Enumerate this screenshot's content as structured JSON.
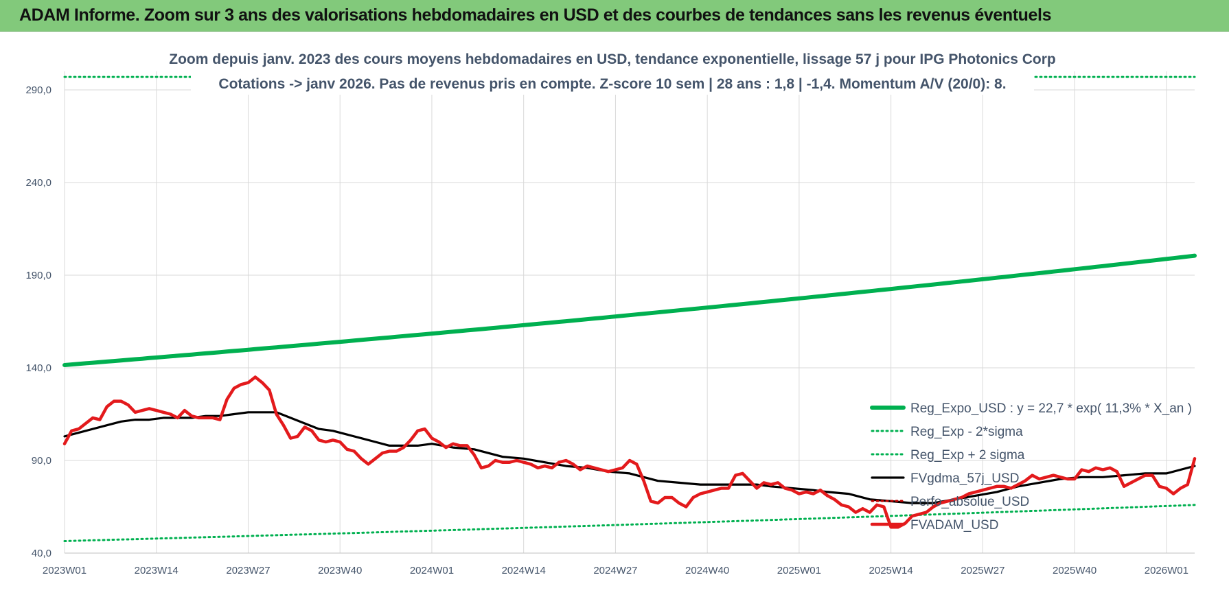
{
  "banner": {
    "title": "ADAM Informe. Zoom sur 3 ans des valorisations hebdomadaires en USD et des courbes de tendances sans les revenus éventuels"
  },
  "chart_data": {
    "type": "line",
    "title": "",
    "subtitle_lines": [
      "Zoom depuis janv. 2023 des cours moyens hebdomadaires en USD, tendance exponentielle, lissage 57 j pour IPG Photonics Corp",
      "Cotations -> janv 2026. Pas de revenus pris en compte. Z-score 10 sem | 28 ans : 1,8 | -1,4. Momentum A/V (20/0): 8."
    ],
    "xlabel": "",
    "ylabel": "",
    "ylim": [
      40,
      300
    ],
    "y_ticks": [
      "40,0",
      "90,0",
      "140,0",
      "190,0",
      "240,0",
      "290,0"
    ],
    "y_tick_values": [
      40,
      90,
      140,
      190,
      240,
      290
    ],
    "x_ticks": [
      "2023W01",
      "2023W14",
      "2023W27",
      "2023W40",
      "2024W01",
      "2024W14",
      "2024W27",
      "2024W40",
      "2025W01",
      "2025W14",
      "2025W27",
      "2025W40",
      "2026W01"
    ],
    "x_tick_index": [
      0,
      13,
      26,
      39,
      52,
      65,
      78,
      91,
      104,
      117,
      130,
      143,
      156
    ],
    "x_count": 161,
    "grid": true,
    "legend_position": "right",
    "series": [
      {
        "name": "Reg_Expo_USD : y = 22,7 * exp( 11,3% *  X_an )",
        "color": "#00b050",
        "style": "thick-solid",
        "kind": "exponential",
        "start": 141.5,
        "end": 200.5
      },
      {
        "name": "Reg_Exp - 2*sigma",
        "color": "#00b050",
        "style": "dotted",
        "kind": "exponential",
        "start": 46.5,
        "end": 66
      },
      {
        "name": "Reg_Exp + 2 sigma",
        "color": "#00b050",
        "style": "dotted",
        "kind": "exponential",
        "start": 297,
        "end": 297
      },
      {
        "name": "FVgdma_57j_USD",
        "color": "#000000",
        "style": "solid",
        "kind": "points",
        "points": [
          [
            0,
            103
          ],
          [
            3,
            106
          ],
          [
            6,
            109
          ],
          [
            8,
            111
          ],
          [
            10,
            112
          ],
          [
            12,
            112
          ],
          [
            14,
            113
          ],
          [
            16,
            113
          ],
          [
            18,
            113
          ],
          [
            20,
            114
          ],
          [
            22,
            114
          ],
          [
            24,
            115
          ],
          [
            26,
            116
          ],
          [
            28,
            116
          ],
          [
            30,
            116
          ],
          [
            32,
            113
          ],
          [
            34,
            110
          ],
          [
            36,
            107
          ],
          [
            38,
            106
          ],
          [
            40,
            104
          ],
          [
            42,
            102
          ],
          [
            44,
            100
          ],
          [
            46,
            98
          ],
          [
            48,
            98
          ],
          [
            50,
            98
          ],
          [
            52,
            99
          ],
          [
            55,
            97
          ],
          [
            58,
            96
          ],
          [
            60,
            94
          ],
          [
            62,
            92
          ],
          [
            65,
            91
          ],
          [
            68,
            89
          ],
          [
            71,
            87
          ],
          [
            74,
            86
          ],
          [
            77,
            84
          ],
          [
            80,
            83
          ],
          [
            82,
            81
          ],
          [
            84,
            79
          ],
          [
            87,
            78
          ],
          [
            90,
            77
          ],
          [
            93,
            77
          ],
          [
            96,
            77
          ],
          [
            98,
            77
          ],
          [
            100,
            76
          ],
          [
            103,
            75
          ],
          [
            106,
            74
          ],
          [
            108,
            73
          ],
          [
            111,
            72
          ],
          [
            114,
            69
          ],
          [
            117,
            68
          ],
          [
            120,
            67
          ],
          [
            123,
            67
          ],
          [
            126,
            69
          ],
          [
            129,
            71
          ],
          [
            132,
            73
          ],
          [
            135,
            76
          ],
          [
            138,
            78
          ],
          [
            141,
            80
          ],
          [
            144,
            81
          ],
          [
            147,
            81
          ],
          [
            150,
            82
          ],
          [
            153,
            83
          ],
          [
            156,
            83
          ],
          [
            158,
            85
          ],
          [
            160,
            87
          ]
        ]
      },
      {
        "name": "Perfo_absolue_USD",
        "color": "#c00000",
        "style": "dotted",
        "kind": "points",
        "points": []
      },
      {
        "name": "FVADAM_USD",
        "color": "#e31a1c",
        "style": "thick-solid",
        "kind": "points",
        "points": [
          [
            0,
            99
          ],
          [
            1,
            106
          ],
          [
            2,
            107
          ],
          [
            3,
            110
          ],
          [
            4,
            113
          ],
          [
            5,
            112
          ],
          [
            6,
            119
          ],
          [
            7,
            122
          ],
          [
            8,
            122
          ],
          [
            9,
            120
          ],
          [
            10,
            116
          ],
          [
            11,
            117
          ],
          [
            12,
            118
          ],
          [
            13,
            117
          ],
          [
            14,
            116
          ],
          [
            15,
            115
          ],
          [
            16,
            113
          ],
          [
            17,
            117
          ],
          [
            18,
            114
          ],
          [
            19,
            113
          ],
          [
            20,
            113
          ],
          [
            21,
            113
          ],
          [
            22,
            112
          ],
          [
            23,
            123
          ],
          [
            24,
            129
          ],
          [
            25,
            131
          ],
          [
            26,
            132
          ],
          [
            27,
            135
          ],
          [
            28,
            132
          ],
          [
            29,
            128
          ],
          [
            30,
            115
          ],
          [
            31,
            109
          ],
          [
            32,
            102
          ],
          [
            33,
            103
          ],
          [
            34,
            108
          ],
          [
            35,
            106
          ],
          [
            36,
            101
          ],
          [
            37,
            100
          ],
          [
            38,
            101
          ],
          [
            39,
            100
          ],
          [
            40,
            96
          ],
          [
            41,
            95
          ],
          [
            42,
            91
          ],
          [
            43,
            88
          ],
          [
            44,
            91
          ],
          [
            45,
            94
          ],
          [
            46,
            95
          ],
          [
            47,
            95
          ],
          [
            48,
            97
          ],
          [
            49,
            101
          ],
          [
            50,
            106
          ],
          [
            51,
            107
          ],
          [
            52,
            102
          ],
          [
            53,
            100
          ],
          [
            54,
            97
          ],
          [
            55,
            99
          ],
          [
            56,
            98
          ],
          [
            57,
            98
          ],
          [
            58,
            93
          ],
          [
            59,
            86
          ],
          [
            60,
            87
          ],
          [
            61,
            90
          ],
          [
            62,
            89
          ],
          [
            63,
            89
          ],
          [
            64,
            90
          ],
          [
            65,
            89
          ],
          [
            66,
            88
          ],
          [
            67,
            86
          ],
          [
            68,
            87
          ],
          [
            69,
            86
          ],
          [
            70,
            89
          ],
          [
            71,
            90
          ],
          [
            72,
            88
          ],
          [
            73,
            85
          ],
          [
            74,
            87
          ],
          [
            75,
            86
          ],
          [
            76,
            85
          ],
          [
            77,
            84
          ],
          [
            78,
            85
          ],
          [
            79,
            86
          ],
          [
            80,
            90
          ],
          [
            81,
            88
          ],
          [
            82,
            79
          ],
          [
            83,
            68
          ],
          [
            84,
            67
          ],
          [
            85,
            70
          ],
          [
            86,
            70
          ],
          [
            87,
            67
          ],
          [
            88,
            65
          ],
          [
            89,
            70
          ],
          [
            90,
            72
          ],
          [
            91,
            73
          ],
          [
            92,
            74
          ],
          [
            93,
            75
          ],
          [
            94,
            75
          ],
          [
            95,
            82
          ],
          [
            96,
            83
          ],
          [
            97,
            79
          ],
          [
            98,
            75
          ],
          [
            99,
            78
          ],
          [
            100,
            77
          ],
          [
            101,
            78
          ],
          [
            102,
            75
          ],
          [
            103,
            74
          ],
          [
            104,
            72
          ],
          [
            105,
            73
          ],
          [
            106,
            72
          ],
          [
            107,
            74
          ],
          [
            108,
            71
          ],
          [
            109,
            69
          ],
          [
            110,
            66
          ],
          [
            111,
            65
          ],
          [
            112,
            62
          ],
          [
            113,
            64
          ],
          [
            114,
            62
          ],
          [
            115,
            66
          ],
          [
            116,
            65
          ],
          [
            117,
            54
          ],
          [
            118,
            54
          ],
          [
            119,
            56
          ],
          [
            120,
            60
          ],
          [
            121,
            61
          ],
          [
            122,
            62
          ],
          [
            123,
            65
          ],
          [
            124,
            67
          ],
          [
            125,
            68
          ],
          [
            126,
            69
          ],
          [
            127,
            70
          ],
          [
            128,
            72
          ],
          [
            129,
            73
          ],
          [
            130,
            74
          ],
          [
            131,
            75
          ],
          [
            132,
            76
          ],
          [
            133,
            76
          ],
          [
            134,
            75
          ],
          [
            135,
            77
          ],
          [
            136,
            79
          ],
          [
            137,
            82
          ],
          [
            138,
            80
          ],
          [
            139,
            81
          ],
          [
            140,
            82
          ],
          [
            141,
            81
          ],
          [
            142,
            80
          ],
          [
            143,
            80
          ],
          [
            144,
            85
          ],
          [
            145,
            84
          ],
          [
            146,
            86
          ],
          [
            147,
            85
          ],
          [
            148,
            86
          ],
          [
            149,
            84
          ],
          [
            150,
            76
          ],
          [
            151,
            78
          ],
          [
            152,
            80
          ],
          [
            153,
            82
          ],
          [
            154,
            82
          ],
          [
            155,
            76
          ],
          [
            156,
            75
          ],
          [
            157,
            72
          ],
          [
            158,
            75
          ],
          [
            159,
            77
          ],
          [
            160,
            91
          ]
        ]
      }
    ]
  }
}
